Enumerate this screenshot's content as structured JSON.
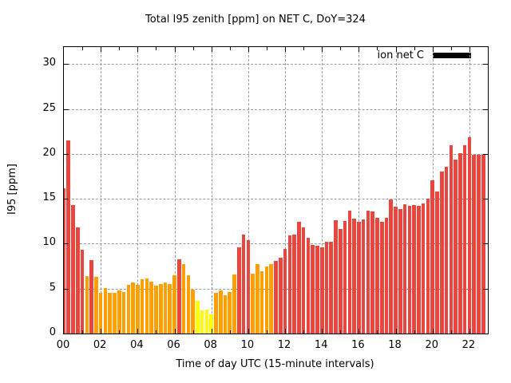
{
  "title": "Total I95 zenith [ppm] on NET C, DoY=324",
  "legend": {
    "label": "ion net C",
    "swatch_color": "#000000"
  },
  "axes": {
    "xlabel": "Time of day UTC (15-minute intervals)",
    "ylabel": "I95 [ppm]",
    "x_tick_labels": [
      "00",
      "02",
      "04",
      "06",
      "08",
      "10",
      "12",
      "14",
      "16",
      "18",
      "20",
      "22"
    ],
    "x_tick_hours": [
      0,
      2,
      4,
      6,
      8,
      10,
      12,
      14,
      16,
      18,
      20,
      22
    ],
    "x_minor_tick_hours": [
      1,
      3,
      5,
      7,
      9,
      11,
      13,
      15,
      17,
      19,
      21
    ],
    "y_ticks": [
      0,
      5,
      10,
      15,
      20,
      25,
      30
    ],
    "x_range_hours": [
      0,
      23
    ],
    "y_range": [
      0,
      31.9
    ],
    "grid": "dashed"
  },
  "colors": {
    "red": "#e8463e",
    "orange": "#ffa000",
    "yellow": "#ffff00"
  },
  "chart_data": {
    "type": "bar",
    "title": "Total I95 zenith [ppm] on NET C, DoY=324",
    "xlabel": "Time of day UTC (15-minute intervals)",
    "ylabel": "I95 [ppm]",
    "ylim": [
      0,
      31.9
    ],
    "xlim_hours": [
      0,
      23
    ],
    "legend_entries": [
      "ion net C"
    ],
    "legend_position": "top-right-inside",
    "grid": true,
    "categories": [
      "00:00",
      "00:15",
      "00:30",
      "00:45",
      "01:00",
      "01:15",
      "01:30",
      "01:45",
      "02:00",
      "02:15",
      "02:30",
      "02:45",
      "03:00",
      "03:15",
      "03:30",
      "03:45",
      "04:00",
      "04:15",
      "04:30",
      "04:45",
      "05:00",
      "05:15",
      "05:30",
      "05:45",
      "06:00",
      "06:15",
      "06:30",
      "06:45",
      "07:00",
      "07:15",
      "07:30",
      "07:45",
      "08:00",
      "08:15",
      "08:30",
      "08:45",
      "09:00",
      "09:15",
      "09:30",
      "09:45",
      "10:00",
      "10:15",
      "10:30",
      "10:45",
      "11:00",
      "11:15",
      "11:30",
      "11:45",
      "12:00",
      "12:15",
      "12:30",
      "12:45",
      "13:00",
      "13:15",
      "13:30",
      "13:45",
      "14:00",
      "14:15",
      "14:30",
      "14:45",
      "15:00",
      "15:15",
      "15:30",
      "15:45",
      "16:00",
      "16:15",
      "16:30",
      "16:45",
      "17:00",
      "17:15",
      "17:30",
      "17:45",
      "18:00",
      "18:15",
      "18:30",
      "18:45",
      "19:00",
      "19:15",
      "19:30",
      "19:45",
      "20:00",
      "20:15",
      "20:30",
      "20:45",
      "21:00",
      "21:15",
      "21:30",
      "21:45",
      "22:00",
      "22:15",
      "22:30",
      "22:45"
    ],
    "values": [
      16.2,
      21.5,
      14.3,
      11.8,
      9.3,
      6.4,
      8.2,
      6.3,
      4.5,
      5.1,
      4.5,
      4.5,
      4.8,
      4.6,
      5.4,
      5.7,
      5.4,
      6.0,
      6.1,
      5.8,
      5.3,
      5.5,
      5.7,
      5.5,
      6.5,
      8.3,
      7.7,
      6.5,
      4.9,
      3.6,
      2.6,
      2.7,
      2.1,
      4.5,
      4.8,
      4.3,
      4.6,
      6.6,
      9.6,
      11.0,
      10.4,
      6.7,
      7.7,
      6.9,
      7.5,
      7.7,
      8.1,
      8.4,
      9.4,
      10.9,
      11.0,
      12.4,
      11.8,
      10.7,
      9.9,
      9.8,
      9.6,
      10.2,
      10.2,
      12.6,
      11.6,
      12.5,
      13.7,
      12.8,
      12.4,
      12.7,
      13.7,
      13.6,
      12.9,
      12.4,
      12.9,
      14.9,
      14.1,
      13.9,
      14.4,
      14.2,
      14.3,
      14.2,
      14.5,
      15.0,
      17.1,
      15.8,
      18.0,
      18.6,
      21.0,
      19.4,
      20.1,
      21.0,
      21.9,
      19.9,
      19.9,
      19.9
    ],
    "bar_colors": [
      "red",
      "red",
      "red",
      "red",
      "red",
      "orange",
      "red",
      "orange",
      "orange",
      "orange",
      "orange",
      "orange",
      "orange",
      "orange",
      "orange",
      "orange",
      "orange",
      "orange",
      "orange",
      "orange",
      "orange",
      "orange",
      "orange",
      "orange",
      "orange",
      "red",
      "orange",
      "orange",
      "orange",
      "yellow",
      "yellow",
      "yellow",
      "yellow",
      "orange",
      "orange",
      "orange",
      "orange",
      "orange",
      "red",
      "red",
      "red",
      "orange",
      "orange",
      "orange",
      "orange",
      "orange",
      "red",
      "red",
      "red",
      "red",
      "red",
      "red",
      "red",
      "red",
      "red",
      "red",
      "red",
      "red",
      "red",
      "red",
      "red",
      "red",
      "red",
      "red",
      "red",
      "red",
      "red",
      "red",
      "red",
      "red",
      "red",
      "red",
      "red",
      "red",
      "red",
      "red",
      "red",
      "red",
      "red",
      "red",
      "red",
      "red",
      "red",
      "red",
      "red",
      "red",
      "red",
      "red",
      "red",
      "red",
      "red",
      "red"
    ]
  }
}
